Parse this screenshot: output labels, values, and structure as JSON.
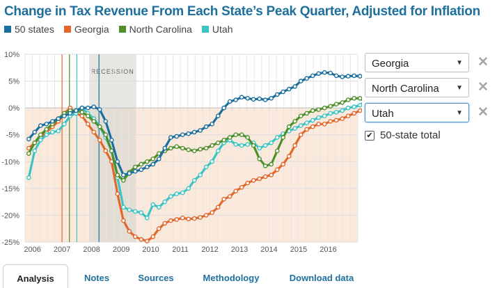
{
  "title": "Change in Tax Revenue From Each State’s Peak Quarter, Adjusted for Inflation",
  "legend": [
    {
      "label": "50 states",
      "color": "#1a6f9e"
    },
    {
      "label": "Georgia",
      "color": "#e2672a"
    },
    {
      "label": "North Carolina",
      "color": "#4f8f2a"
    },
    {
      "label": "Utah",
      "color": "#3cc4c4"
    }
  ],
  "controls": {
    "selects": [
      "Georgia",
      "North Carolina",
      "Utah"
    ],
    "checkbox_label": "50-state total",
    "checkbox_checked": true
  },
  "tabs": [
    "Analysis",
    "Notes",
    "Sources",
    "Methodology",
    "Download data"
  ],
  "chart_data": {
    "type": "line",
    "annotation": "RECESSION",
    "recession": [
      2007.917,
      2009.5
    ],
    "xlim": [
      2005.75,
      2017.0
    ],
    "ylim": [
      -25,
      10
    ],
    "x_ticks": [
      2006,
      2007,
      2008,
      2009,
      2010,
      2011,
      2012,
      2013,
      2014,
      2015,
      2016
    ],
    "y_ticks": [
      {
        "value": 10,
        "label": "10%"
      },
      {
        "value": 5,
        "label": "5%"
      },
      {
        "value": 0,
        "label": "0%"
      },
      {
        "value": -5,
        "label": "-5%"
      },
      {
        "value": -10,
        "label": "-10%"
      },
      {
        "value": -15,
        "label": "-15%"
      },
      {
        "value": -20,
        "label": "-20%"
      },
      {
        "value": -25,
        "label": "-25%"
      }
    ],
    "peak_markers": [
      {
        "series": "Georgia",
        "x": 2007.0,
        "color": "#e2672a"
      },
      {
        "series": "North Carolina",
        "x": 2007.25,
        "color": "#4f8f2a"
      },
      {
        "series": "Utah",
        "x": 2007.5,
        "color": "#3cc4c4"
      },
      {
        "series": "50 states",
        "x": 2008.25,
        "color": "#1a6f9e"
      }
    ],
    "x_start": 2005.875,
    "x_step": 0.2,
    "series": [
      {
        "name": "50 states",
        "color": "#1a6f9e",
        "values": [
          -5.8,
          -4.5,
          -3.3,
          -3.0,
          -2.5,
          -2.0,
          -1.5,
          -1.0,
          -0.5,
          0,
          0,
          0.2,
          -0.3,
          -2.5,
          -6.0,
          -10.0,
          -12.5,
          -12.2,
          -11.8,
          -11.5,
          -11.0,
          -10.5,
          -9.5,
          -7.5,
          -5.5,
          -5.3,
          -5.0,
          -4.8,
          -4.5,
          -4.2,
          -3.5,
          -3.0,
          -1.5,
          0,
          1.2,
          1.5,
          2.0,
          1.8,
          1.6,
          1.7,
          1.5,
          1.8,
          2.5,
          3.0,
          3.5,
          4.0,
          5.0,
          5.5,
          6.0,
          6.4,
          6.6,
          6.5,
          6.0,
          5.8,
          5.9,
          6.0,
          5.9,
          6.1,
          6.3
        ]
      },
      {
        "name": "Georgia",
        "color": "#e2672a",
        "values": [
          -7.5,
          -6.5,
          -5.5,
          -4.5,
          -3.5,
          -2.5,
          -1.0,
          0,
          -1.0,
          -1.5,
          -3.0,
          -4.5,
          -6.0,
          -8.0,
          -10.0,
          -16.0,
          -21.0,
          -23.0,
          -24.0,
          -24.5,
          -24.8,
          -24.0,
          -22.5,
          -21.5,
          -21.0,
          -20.8,
          -20.5,
          -20.7,
          -20.6,
          -20.4,
          -20.0,
          -19.5,
          -18.5,
          -17.0,
          -16.5,
          -15.5,
          -14.8,
          -14.0,
          -13.5,
          -13.2,
          -12.8,
          -12.5,
          -11.5,
          -10.5,
          -9.0,
          -7.0,
          -5.0,
          -4.0,
          -3.5,
          -3.0,
          -3.0,
          -2.5,
          -2.3,
          -2.0,
          -1.5,
          -1.0,
          -0.5,
          0,
          0.5
        ]
      },
      {
        "name": "North Carolina",
        "color": "#4f8f2a",
        "values": [
          -8.5,
          -6.5,
          -5.0,
          -4.0,
          -3.0,
          -2.0,
          -1.0,
          -0.5,
          -0.5,
          -0.8,
          -1.5,
          -2.5,
          -3.5,
          -5.0,
          -8.0,
          -12.5,
          -13.5,
          -12.0,
          -11.0,
          -10.5,
          -10.0,
          -9.5,
          -8.5,
          -8.0,
          -7.5,
          -7.2,
          -7.5,
          -7.8,
          -8.0,
          -7.7,
          -7.5,
          -7.0,
          -6.5,
          -6.0,
          -5.5,
          -5.0,
          -5.0,
          -5.5,
          -7.0,
          -9.5,
          -10.8,
          -10.5,
          -8.0,
          -5.5,
          -3.5,
          -2.5,
          -1.5,
          -1.0,
          -0.5,
          -0.3,
          0,
          0.3,
          0.7,
          1.0,
          1.5,
          1.8,
          1.8,
          1.0,
          0.8
        ]
      },
      {
        "name": "Utah",
        "color": "#3cc4c4",
        "values": [
          -13.0,
          -8.0,
          -6.0,
          -5.0,
          -4.5,
          -4.3,
          -3.0,
          -1.5,
          -1.0,
          0,
          -1.0,
          -2.0,
          -3.5,
          -5.5,
          -8.0,
          -13.0,
          -18.5,
          -19.0,
          -19.3,
          -19.5,
          -20.5,
          -18.0,
          -18.5,
          -17.5,
          -16.5,
          -16.0,
          -15.8,
          -15.0,
          -13.5,
          -12.5,
          -11.0,
          -10.0,
          -8.0,
          -6.5,
          -6.0,
          -6.8,
          -7.0,
          -6.8,
          -6.5,
          -7.5,
          -7.0,
          -6.5,
          -5.5,
          -4.8,
          -4.3,
          -3.8,
          -3.3,
          -2.8,
          -2.3,
          -1.8,
          -1.5,
          -1.0,
          -0.8,
          -0.5,
          0,
          0.2,
          0.5,
          1.5,
          3.5
        ]
      }
    ]
  }
}
